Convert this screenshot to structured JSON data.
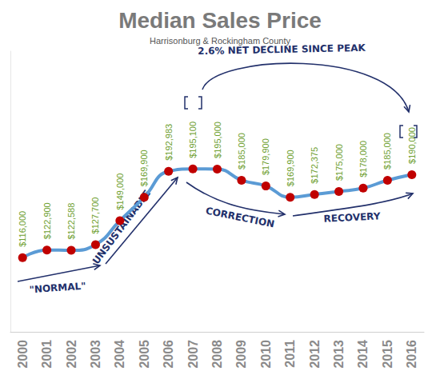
{
  "chart_data": {
    "type": "line",
    "title": "Median Sales Price",
    "subtitle": "Harrisonburg & Rockingham County",
    "categories": [
      "2000",
      "2001",
      "2002",
      "2003",
      "2004",
      "2005",
      "2006",
      "2007",
      "2008",
      "2009",
      "2010",
      "2011",
      "2012",
      "2013",
      "2014",
      "2015",
      "2016"
    ],
    "values": [
      116000,
      122900,
      122588,
      127700,
      149000,
      169900,
      192983,
      195100,
      195000,
      185000,
      179900,
      169900,
      172375,
      175000,
      178000,
      185000,
      190000
    ],
    "value_labels": [
      "$116,000",
      "$122,900",
      "$122,588",
      "$127,700",
      "$149,000",
      "$169,900",
      "$192,983",
      "$195,100",
      "$195,000",
      "$185,000",
      "$179,900",
      "$169,900",
      "$172,375",
      "$175,000",
      "$178,000",
      "$185,000",
      "$190,000"
    ],
    "color": "#5b9bd5",
    "marker": "circle",
    "line_style": "solid",
    "ylim": [
      50000,
      300000
    ],
    "yticks": [],
    "grid": false,
    "data_labels": true,
    "tick_labels": "x",
    "annotations": [
      {
        "text": "2.6% NET DECLINE SINCE PEAK"
      },
      {
        "text": "\"NORMAL\""
      },
      {
        "text": "UNSUSTAINABLE"
      },
      {
        "text": "CORRECTION"
      },
      {
        "text": "RECOVERY"
      }
    ]
  }
}
